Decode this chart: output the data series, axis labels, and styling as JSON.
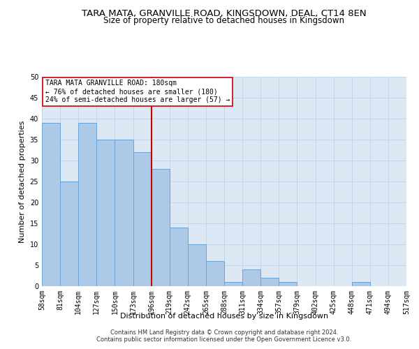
{
  "title": "TARA MATA, GRANVILLE ROAD, KINGSDOWN, DEAL, CT14 8EN",
  "subtitle": "Size of property relative to detached houses in Kingsdown",
  "xlabel": "Distribution of detached houses by size in Kingsdown",
  "ylabel": "Number of detached properties",
  "bar_values": [
    39,
    25,
    39,
    35,
    35,
    32,
    28,
    14,
    10,
    6,
    1,
    4,
    2,
    1,
    0,
    0,
    0,
    1,
    0,
    0
  ],
  "x_labels": [
    "58sqm",
    "81sqm",
    "104sqm",
    "127sqm",
    "150sqm",
    "173sqm",
    "196sqm",
    "219sqm",
    "242sqm",
    "265sqm",
    "288sqm",
    "311sqm",
    "334sqm",
    "357sqm",
    "379sqm",
    "402sqm",
    "425sqm",
    "448sqm",
    "471sqm",
    "494sqm",
    "517sqm"
  ],
  "bar_color": "#adc9e8",
  "bar_edge_color": "#6aa3d4",
  "vline_color": "#cc0000",
  "ylim": [
    0,
    50
  ],
  "yticks": [
    0,
    5,
    10,
    15,
    20,
    25,
    30,
    35,
    40,
    45,
    50
  ],
  "annotation_box_text": "TARA MATA GRANVILLE ROAD: 180sqm\n← 76% of detached houses are smaller (180)\n24% of semi-detached houses are larger (57) →",
  "footer_text": "Contains HM Land Registry data © Crown copyright and database right 2024.\nContains public sector information licensed under the Open Government Licence v3.0.",
  "grid_color": "#c0d4e8",
  "bg_color": "#dce9f5",
  "title_fontsize": 9.5,
  "subtitle_fontsize": 8.5,
  "tick_fontsize": 7,
  "label_fontsize": 8,
  "annotation_fontsize": 7,
  "footer_fontsize": 6
}
